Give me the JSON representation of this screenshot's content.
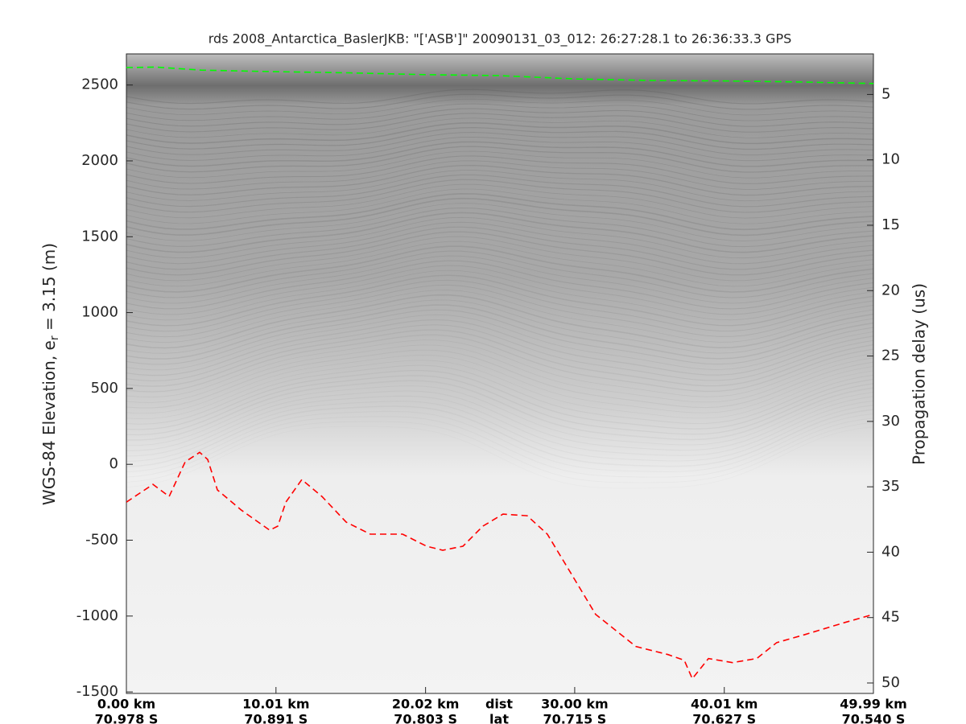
{
  "chart_data": {
    "type": "line",
    "title": "rds 2008_Antarctica_BaslerJKB: \"['ASB']\"  20090131_03_012: 26:27:28.1 to 26:36:33.3 GPS",
    "ylabel": {
      "text": "WGS-84 Elevation, e",
      "sub": "r",
      "rest": " = 3.15 (m)"
    },
    "y2label": "Propagation delay (us)",
    "x_label_dist": "dist",
    "x_label_lat": "lat",
    "xlim": [
      0,
      49.99
    ],
    "xticks": [
      {
        "value": 0,
        "label": "0.00 km"
      },
      {
        "value": 10.01,
        "label": "10.01 km"
      },
      {
        "value": 20.02,
        "label": "20.02 km"
      },
      {
        "value": 30.0,
        "label": "30.00 km"
      },
      {
        "value": 40.01,
        "label": "40.01 km"
      },
      {
        "value": 49.99,
        "label": "49.99 km"
      }
    ],
    "xtick_lat_labels": [
      "70.978 S",
      "70.891 S",
      "70.803 S",
      "70.715 S",
      "70.627 S",
      "70.540 S"
    ],
    "ylim": [
      -1510,
      2705
    ],
    "yticks": [
      -1500,
      -1000,
      -500,
      0,
      500,
      1000,
      1500,
      2000,
      2500
    ],
    "y2lim": [
      50.8,
      1.9
    ],
    "y2ticks": [
      5,
      10,
      15,
      20,
      25,
      30,
      35,
      40,
      45,
      50
    ],
    "series": [
      {
        "color": "#00ff00",
        "x": [
          0,
          2,
          5,
          10,
          15,
          20,
          25,
          30,
          35,
          40,
          45,
          49.99
        ],
        "values": [
          2615,
          2618,
          2598,
          2588,
          2580,
          2568,
          2562,
          2540,
          2530,
          2527,
          2520,
          2510
        ]
      },
      {
        "color": "#ff0000",
        "x": [
          0,
          1.78,
          2.86,
          3.93,
          4.9,
          5.44,
          6.09,
          7.7,
          9.59,
          10.13,
          10.67,
          11.74,
          13.09,
          14.71,
          16.32,
          18.48,
          20.09,
          21.17,
          22.52,
          23.86,
          25.2,
          26.82,
          28.17,
          29.79,
          31.4,
          34.1,
          36.25,
          37.33,
          37.87,
          38.95,
          40.56,
          42.18,
          43.52,
          45.41,
          48.1,
          49.99
        ],
        "values": [
          -249,
          -132,
          -212,
          16,
          79,
          32,
          -169,
          -302,
          -434,
          -407,
          -249,
          -101,
          -212,
          -381,
          -460,
          -460,
          -540,
          -566,
          -540,
          -407,
          -328,
          -339,
          -460,
          -725,
          -989,
          -1201,
          -1254,
          -1291,
          -1413,
          -1280,
          -1307,
          -1280,
          -1175,
          -1122,
          -1042,
          -989
        ]
      }
    ]
  }
}
